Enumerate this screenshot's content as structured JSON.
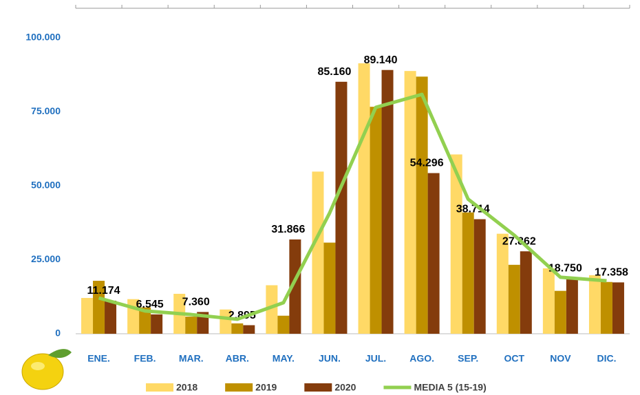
{
  "chart_data": {
    "type": "bar",
    "categories": [
      "ENE.",
      "FEB.",
      "MAR.",
      "ABR.",
      "MAY.",
      "JUN.",
      "JUL.",
      "AGO.",
      "SEP.",
      "OCT",
      "NOV",
      "DIC."
    ],
    "series": [
      {
        "name": "2018",
        "color": "#ffd966",
        "values": [
          12100,
          11700,
          13500,
          8200,
          16400,
          54800,
          91400,
          88800,
          60600,
          33800,
          22100,
          19800
        ]
      },
      {
        "name": "2019",
        "color": "#bf9000",
        "values": [
          17900,
          8900,
          5800,
          3500,
          6100,
          30800,
          76700,
          86900,
          41000,
          23300,
          14500,
          17500
        ]
      },
      {
        "name": "2020",
        "color": "#843c0c",
        "values": [
          11174,
          6545,
          7360,
          2895,
          31866,
          85160,
          89140,
          54296,
          38714,
          27862,
          18750,
          17358
        ],
        "value_labels": [
          "11.174",
          "6.545",
          "7.360",
          "2.895",
          "31.866",
          "85.160",
          "89.140",
          "54.296",
          "38.714",
          "27.862",
          "18.750",
          "17.358"
        ]
      },
      {
        "name": "MEDIA 5 (15-19)",
        "color": "#92d050",
        "type": "line",
        "values": [
          12100,
          7700,
          6500,
          4900,
          10500,
          40800,
          76500,
          80900,
          45500,
          33300,
          19100,
          17900
        ]
      }
    ],
    "ylim": [
      0,
      110000
    ],
    "yticks": [
      0,
      {
        "value": 25000,
        "label": "25.000"
      },
      {
        "value": 50000,
        "label": "50.000"
      },
      {
        "value": 75000,
        "label": "75.000"
      },
      {
        "value": 100000,
        "label": "100.000"
      }
    ],
    "legend": "bottom"
  }
}
